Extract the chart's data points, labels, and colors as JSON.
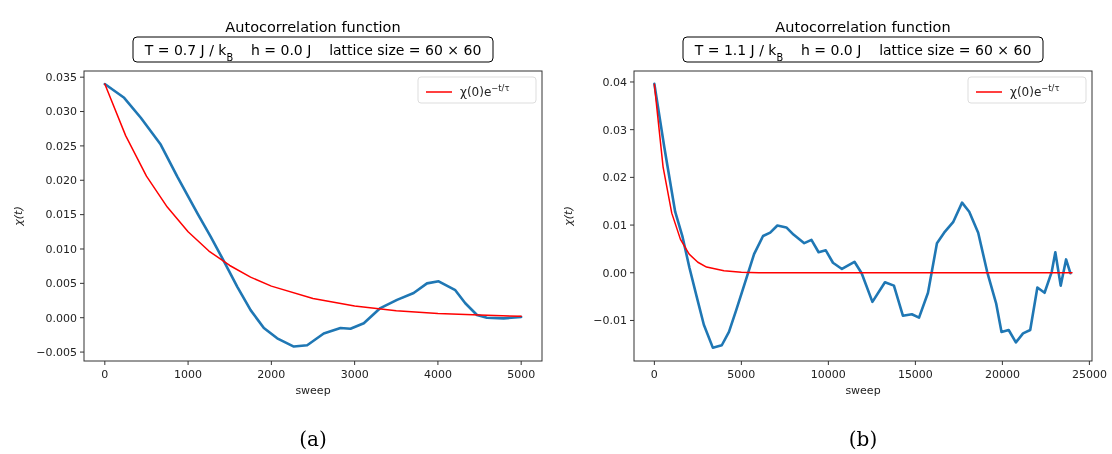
{
  "chart_data": [
    {
      "type": "line",
      "title": "Autocorrelation function",
      "subtitle": "T = 0.7 J / k$_{B}$    h = 0.0 J    lattice size = 60 × 60",
      "xlabel": "sweep",
      "ylabel": "χ(t)",
      "annotations": [
        "(a)"
      ],
      "legend": "top right",
      "xlim": [
        -250,
        5250
      ],
      "ylim": [
        -0.0063,
        0.0359
      ],
      "xticks": [
        0,
        1000,
        2000,
        3000,
        4000,
        5000
      ],
      "yticks": [
        {
          "value": -0.005,
          "label": "−0.005"
        },
        {
          "value": 0,
          "label": "0.000"
        },
        {
          "value": 0.005,
          "label": "0.005"
        },
        {
          "value": 0.01,
          "label": "0.010"
        },
        {
          "value": 0.015,
          "label": "0.015"
        },
        {
          "value": 0.02,
          "label": "0.020"
        },
        {
          "value": 0.025,
          "label": "0.025"
        },
        {
          "value": 0.03,
          "label": "0.030"
        },
        {
          "value": 0.035,
          "label": "0.035"
        }
      ],
      "series": [
        {
          "type": "line",
          "color": "#1f77b4",
          "x": [
            0,
            232,
            432,
            671,
            872,
            1112,
            1271,
            1431,
            1591,
            1751,
            1910,
            2070,
            2270,
            2430,
            2629,
            2830,
            2950,
            3110,
            3309,
            3509,
            3709,
            3869,
            4009,
            4209,
            4329,
            4469,
            4589,
            4789,
            5000
          ],
          "values": [
            0.034,
            0.032,
            0.0291,
            0.0252,
            0.0205,
            0.0152,
            0.0118,
            0.0082,
            0.0045,
            0.0011,
            -0.0015,
            -0.003,
            -0.0042,
            -0.004,
            -0.0023,
            -0.0015,
            -0.0016,
            -0.0008,
            0.0014,
            0.0026,
            0.0036,
            0.005,
            0.0053,
            0.004,
            0.0021,
            0.0004,
            0,
            -0.0001,
            0.0001
          ]
        },
        {
          "type": "line",
          "name": "χ(0)e$^{−t/τ}$",
          "color": "#ff0000",
          "x": [
            0,
            250,
            500,
            750,
            1000,
            1250,
            1500,
            1750,
            2000,
            2500,
            3000,
            3500,
            4000,
            4500,
            5000
          ],
          "values": [
            0.034,
            0.0265,
            0.0206,
            0.0161,
            0.0125,
            0.0097,
            0.0076,
            0.0059,
            0.0046,
            0.0028,
            0.0017,
            0.001,
            0.0006,
            0.0004,
            0.0002
          ]
        }
      ]
    },
    {
      "type": "line",
      "title": "Autocorrelation function",
      "subtitle": "T = 1.1 J / k$_{B}$    h = 0.0 J    lattice size = 60 × 60",
      "xlabel": "sweep",
      "ylabel": "χ(t)",
      "annotations": [
        "(b)"
      ],
      "legend": "top right",
      "xlim": [
        -1170,
        25150
      ],
      "ylim": [
        -0.0185,
        0.0423
      ],
      "xticks": [
        0,
        5000,
        10000,
        15000,
        20000,
        25000
      ],
      "yticks": [
        {
          "value": -0.01,
          "label": "−0.01"
        },
        {
          "value": 0,
          "label": "0.00"
        },
        {
          "value": 0.01,
          "label": "0.01"
        },
        {
          "value": 0.02,
          "label": "0.02"
        },
        {
          "value": 0.03,
          "label": "0.03"
        },
        {
          "value": 0.04,
          "label": "0.04"
        }
      ],
      "series": [
        {
          "type": "line",
          "color": "#1f77b4",
          "x": [
            0,
            577,
            1195,
            1608,
            2020,
            2432,
            2844,
            3359,
            3875,
            4287,
            4699,
            5214,
            5730,
            6245,
            6657,
            7069,
            7584,
            7996,
            8615,
            9027,
            9439,
            9851,
            10264,
            10779,
            11500,
            11913,
            12531,
            13252,
            13767,
            14282,
            14797,
            15210,
            15725,
            16240,
            16652,
            17168,
            17683,
            18095,
            18610,
            19125,
            19640,
            19950,
            20362,
            20775,
            21187,
            21599,
            22011,
            22424,
            22836,
            23042,
            23351,
            23660,
            23907
          ],
          "values": [
            0.0396,
            0.0262,
            0.0128,
            0.0077,
            0.001,
            -0.005,
            -0.0109,
            -0.0157,
            -0.0152,
            -0.0124,
            -0.0079,
            -0.002,
            0.0039,
            0.0077,
            0.0084,
            0.0099,
            0.0095,
            0.008,
            0.0062,
            0.0069,
            0.0043,
            0.0047,
            0.0021,
            0.0008,
            0.0023,
            -0.0001,
            -0.0061,
            -0.002,
            -0.0027,
            -0.009,
            -0.0087,
            -0.0094,
            -0.0042,
            0.0062,
            0.0084,
            0.0106,
            0.0147,
            0.0128,
            0.0084,
            0.0002,
            -0.0064,
            -0.0124,
            -0.012,
            -0.0146,
            -0.0127,
            -0.012,
            -0.0031,
            -0.0042,
            0.0002,
            0.0043,
            -0.0027,
            0.0028,
            -0.0001
          ]
        },
        {
          "type": "line",
          "name": "χ(0)e$^{−t/τ}$",
          "color": "#ff0000",
          "x": [
            0,
            500,
            1000,
            1500,
            2000,
            2500,
            3000,
            4000,
            5000,
            6000,
            10000,
            24000
          ],
          "values": [
            0.0395,
            0.0222,
            0.0125,
            0.007,
            0.0039,
            0.0022,
            0.0012,
            0.0004,
            0.0001,
            0,
            0,
            0
          ]
        }
      ]
    }
  ]
}
